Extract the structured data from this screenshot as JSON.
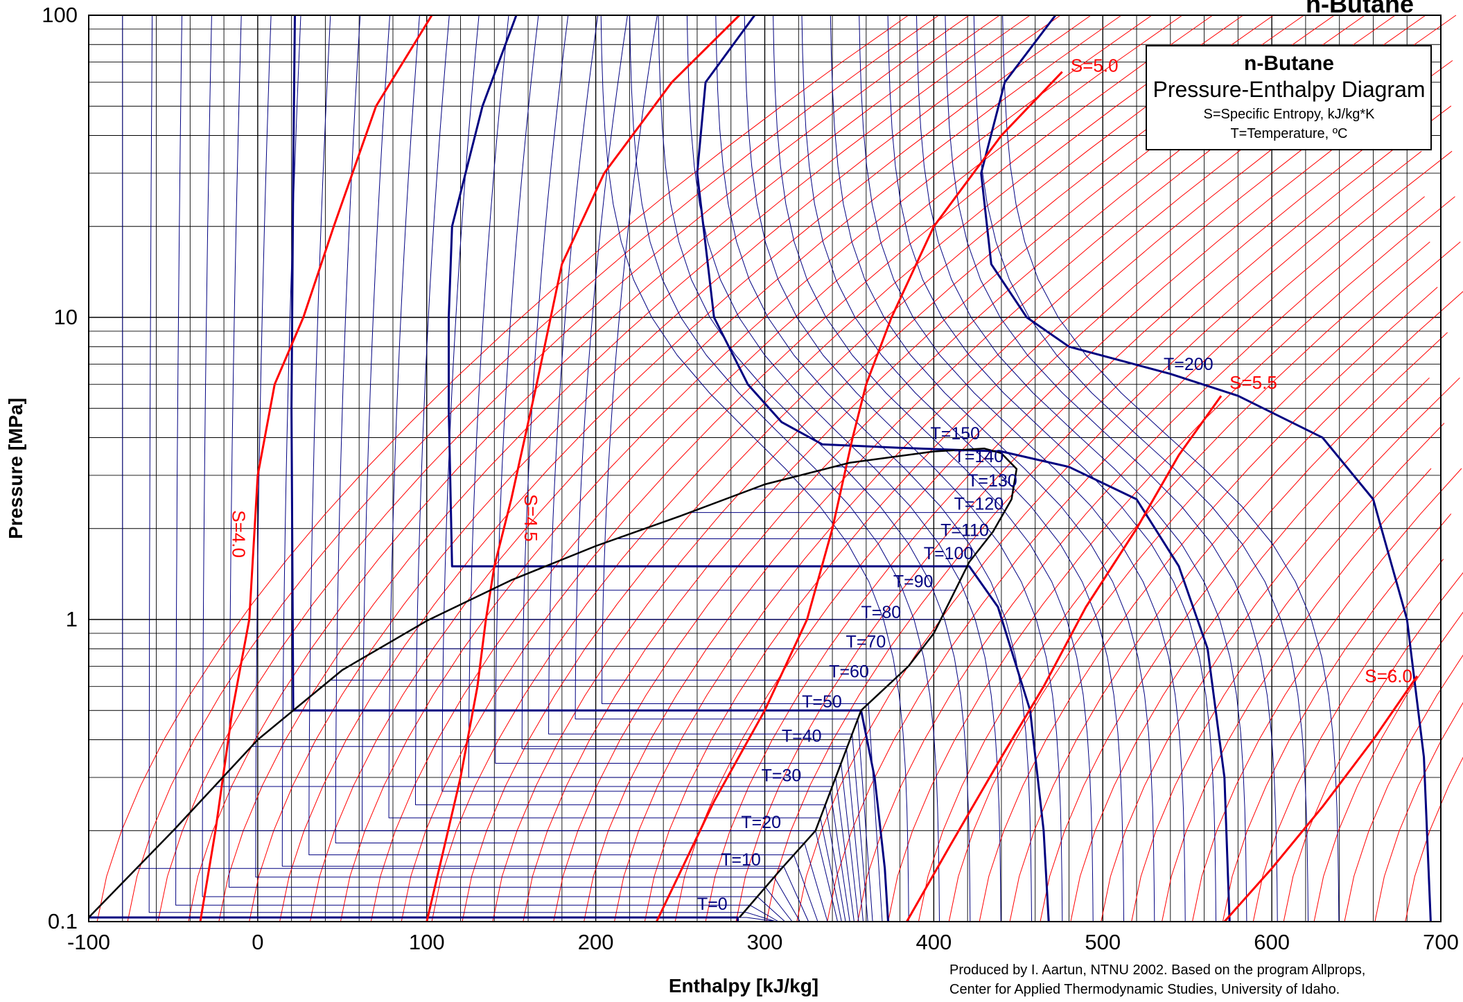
{
  "chart_data": {
    "type": "line",
    "title": "n-Butane",
    "xlabel": "Enthalpy [kJ/kg]",
    "ylabel": "Pressure [MPa]",
    "xlim": [
      -100,
      700
    ],
    "ylim": [
      0.1,
      100
    ],
    "yscale": "log",
    "grid": true,
    "x_ticks": [
      "-100",
      "0",
      "100",
      "200",
      "300",
      "400",
      "500",
      "600",
      "700"
    ],
    "y_ticks": [
      "0.1",
      "1",
      "10",
      "100"
    ],
    "legend": {
      "position": "top-right",
      "title": "n-Butane",
      "subtitle": "Pressure-Enthalpy Diagram",
      "line1": "S=Specific Entropy, kJ/kg*K",
      "line2": "T=Temperature, ºC"
    },
    "credit": [
      "Produced by I. Aartun, NTNU 2002. Based on the program Allprops,",
      "Center for Applied Thermodynamic Studies, University of Idaho."
    ],
    "colors": {
      "isotherm": "#000080",
      "isentrope": "#ff0000",
      "dome": "#000000",
      "grid": "#000000"
    },
    "saturation_dome": {
      "liquid": [
        [
          -100,
          0.1032
        ],
        [
          -50,
          0.2
        ],
        [
          0,
          0.4
        ],
        [
          50,
          0.68
        ],
        [
          100,
          0.99
        ],
        [
          150,
          1.35
        ],
        [
          200,
          1.75
        ],
        [
          250,
          2.2
        ],
        [
          300,
          2.8
        ],
        [
          350,
          3.3
        ],
        [
          400,
          3.6
        ],
        [
          430,
          3.68
        ]
      ],
      "vapor": [
        [
          285,
          0.1032
        ],
        [
          310,
          0.15
        ],
        [
          330,
          0.2
        ],
        [
          357,
          0.5
        ],
        [
          385,
          0.7
        ],
        [
          400,
          0.9
        ],
        [
          421,
          1.55
        ],
        [
          435,
          1.95
        ],
        [
          446,
          2.5
        ],
        [
          449,
          3.15
        ],
        [
          440,
          3.55
        ],
        [
          430,
          3.68
        ]
      ]
    },
    "isotherm_labels": [
      {
        "label": "T=0",
        "x": 260,
        "y": 0.107
      },
      {
        "label": "T=10",
        "x": 274,
        "y": 0.15
      },
      {
        "label": "T=20",
        "x": 286,
        "y": 0.2
      },
      {
        "label": "T=30",
        "x": 298,
        "y": 0.285
      },
      {
        "label": "T=40",
        "x": 310,
        "y": 0.385
      },
      {
        "label": "T=50",
        "x": 322,
        "y": 0.5
      },
      {
        "label": "T=60",
        "x": 338,
        "y": 0.63
      },
      {
        "label": "T=70",
        "x": 348,
        "y": 0.79
      },
      {
        "label": "T=80",
        "x": 357,
        "y": 0.99
      },
      {
        "label": "T=90",
        "x": 376,
        "y": 1.25
      },
      {
        "label": "T=100",
        "x": 394,
        "y": 1.55
      },
      {
        "label": "T=110",
        "x": 404,
        "y": 1.85
      },
      {
        "label": "T=120",
        "x": 412,
        "y": 2.26
      },
      {
        "label": "T=130",
        "x": 420,
        "y": 2.7
      },
      {
        "label": "T=140",
        "x": 412,
        "y": 3.25
      },
      {
        "label": "T=150",
        "x": 398,
        "y": 3.86
      },
      {
        "label": "T=200",
        "x": 536,
        "y": 6.55
      }
    ],
    "isotherms": [
      {
        "name": "T=0",
        "bold": true,
        "points": [
          [
            -100,
            0.1032
          ],
          [
            284,
            0.1032
          ],
          [
            284,
            0.1
          ]
        ]
      },
      {
        "name": "T=50",
        "bold": true,
        "points": [
          [
            22,
            100
          ],
          [
            21,
            30
          ],
          [
            20,
            5
          ],
          [
            21,
            0.5
          ],
          [
            357,
            0.5
          ],
          [
            365,
            0.3
          ],
          [
            371,
            0.15
          ],
          [
            373,
            0.1
          ]
        ]
      },
      {
        "name": "T=100",
        "bold": true,
        "points": [
          [
            153,
            100
          ],
          [
            133,
            50
          ],
          [
            115,
            20
          ],
          [
            113,
            10
          ],
          [
            113,
            5
          ],
          [
            115,
            1.5
          ],
          [
            421,
            1.5
          ],
          [
            438,
            1.1
          ],
          [
            457,
            0.5
          ],
          [
            465,
            0.2
          ],
          [
            468,
            0.1
          ]
        ]
      },
      {
        "name": "T=150",
        "bold": true,
        "points": [
          [
            294,
            100
          ],
          [
            265,
            60
          ],
          [
            260,
            30
          ],
          [
            270,
            10
          ],
          [
            290,
            6
          ],
          [
            310,
            4.5
          ],
          [
            334,
            3.8
          ],
          [
            380,
            3.7
          ],
          [
            440,
            3.6
          ],
          [
            480,
            3.2
          ],
          [
            520,
            2.5
          ],
          [
            545,
            1.5
          ],
          [
            562,
            0.8
          ],
          [
            572,
            0.3
          ],
          [
            575,
            0.1
          ]
        ]
      },
      {
        "name": "T=200",
        "bold": true,
        "points": [
          [
            472,
            100
          ],
          [
            442,
            60
          ],
          [
            428,
            30
          ],
          [
            434,
            15
          ],
          [
            455,
            10
          ],
          [
            480,
            8
          ],
          [
            540,
            6.5
          ],
          [
            580,
            5.5
          ],
          [
            630,
            4.0
          ],
          [
            660,
            2.5
          ],
          [
            680,
            1.0
          ],
          [
            690,
            0.35
          ],
          [
            694,
            0.1
          ]
        ]
      }
    ],
    "isentropes": [
      {
        "name": "S=4.0",
        "bold": true,
        "points": [
          [
            103,
            100
          ],
          [
            70,
            50
          ],
          [
            45,
            20
          ],
          [
            27,
            10
          ],
          [
            10,
            6
          ],
          [
            0,
            3
          ],
          [
            -5,
            1
          ],
          [
            -15,
            0.5
          ],
          [
            -25,
            0.2
          ],
          [
            -34,
            0.1
          ]
        ]
      },
      {
        "name": "S=4.5",
        "bold": true,
        "points": [
          [
            285,
            100
          ],
          [
            245,
            60
          ],
          [
            205,
            30
          ],
          [
            180,
            15
          ],
          [
            165,
            6
          ],
          [
            150,
            2.5
          ],
          [
            140,
            1.5
          ],
          [
            135,
            1
          ],
          [
            130,
            0.6
          ],
          [
            120,
            0.3
          ],
          [
            100,
            0.1
          ]
        ]
      },
      {
        "name": "S=5.0",
        "bold": true,
        "points": [
          [
            476,
            65
          ],
          [
            440,
            40
          ],
          [
            400,
            20
          ],
          [
            375,
            10
          ],
          [
            360,
            6
          ],
          [
            352,
            4
          ],
          [
            340,
            2
          ],
          [
            325,
            1
          ],
          [
            300,
            0.5
          ],
          [
            270,
            0.25
          ],
          [
            236,
            0.1
          ]
        ]
      },
      {
        "name": "S=5.5",
        "bold": true,
        "points": [
          [
            570,
            5.5
          ],
          [
            545,
            3.5
          ],
          [
            520,
            2.0
          ],
          [
            490,
            1.1
          ],
          [
            465,
            0.6
          ],
          [
            440,
            0.35
          ],
          [
            410,
            0.18
          ],
          [
            384,
            0.1
          ]
        ]
      },
      {
        "name": "S=6.0",
        "bold": true,
        "points": [
          [
            686,
            0.65
          ],
          [
            660,
            0.4
          ],
          [
            630,
            0.24
          ],
          [
            600,
            0.15
          ],
          [
            572,
            0.1
          ]
        ]
      }
    ],
    "isentrope_labels": [
      {
        "label": "S=4.0",
        "x": -15,
        "y": 2.3,
        "rotate": 90
      },
      {
        "label": "S=4.5",
        "x": 158,
        "y": 2.6,
        "rotate": 90
      },
      {
        "label": "S=5.0",
        "x": 481,
        "y": 65
      },
      {
        "label": "S=5.5",
        "x": 575,
        "y": 5.8
      },
      {
        "label": "S=6.0",
        "x": 655,
        "y": 0.62
      }
    ]
  }
}
